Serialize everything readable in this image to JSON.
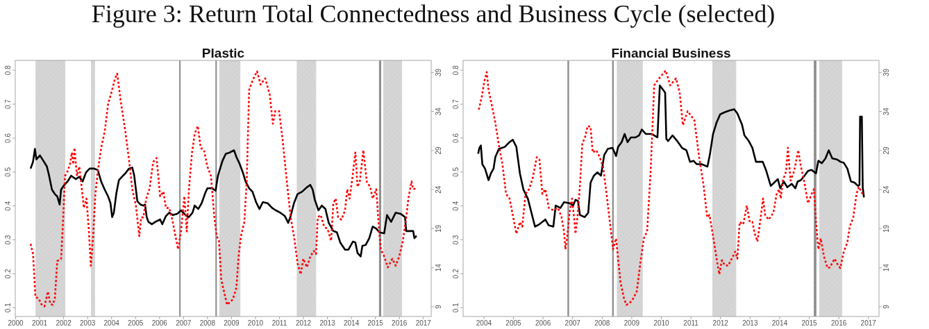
{
  "chart_data": [
    {
      "type": "line",
      "title": "Plastic",
      "annotations": [
        "Figure 3: Return Total Connectedness and Business Cycle (selected)"
      ],
      "xlim": [
        2000,
        2017.34
      ],
      "xticks": [
        2000,
        2001,
        2002,
        2003,
        2004,
        2005,
        2006,
        2007,
        2008,
        2009,
        2010,
        2011,
        2012,
        2013,
        2014,
        2015,
        2016,
        2017
      ],
      "ylim": [
        0.073,
        0.828
      ],
      "yticks": [
        0.1,
        0.2,
        0.3,
        0.4,
        0.5,
        0.6,
        0.7,
        0.8
      ],
      "y2lim": [
        7.7,
        40.5
      ],
      "y2ticks": [
        9,
        14,
        19,
        24,
        29,
        34,
        39
      ],
      "bands": [
        {
          "axis": "x",
          "from": 2000.86,
          "to": 2002.07,
          "color": "#d3d3d3"
        },
        {
          "axis": "x",
          "from": 2003.17,
          "to": 2003.31,
          "color": "#d3d3d3"
        },
        {
          "axis": "x",
          "from": 2006.85,
          "to": 2006.88,
          "color": "#8c8c8c"
        },
        {
          "axis": "x",
          "from": 2008.36,
          "to": 2008.39,
          "color": "#8c8c8c"
        },
        {
          "axis": "x",
          "from": 2008.52,
          "to": 2009.37,
          "color": "#d3d3d3"
        },
        {
          "axis": "x",
          "from": 2011.75,
          "to": 2012.53,
          "color": "#d3d3d3"
        },
        {
          "axis": "x",
          "from": 2015.18,
          "to": 2015.24,
          "color": "#8c8c8c"
        },
        {
          "axis": "x",
          "from": 2015.36,
          "to": 2016.11,
          "color": "#d3d3d3"
        }
      ],
      "series": [
        {
          "color": "#000000",
          "line_style": "solid",
          "x": [
            2000.64,
            2000.74,
            2000.82,
            2000.88,
            2001.03,
            2001.17,
            2001.32,
            2001.41,
            2001.53,
            2001.65,
            2001.75,
            2001.85,
            2001.91,
            2002.01,
            2002.18,
            2002.33,
            2002.52,
            2002.67,
            2002.81,
            2002.95,
            2003.1,
            2003.29,
            2003.44,
            2003.58,
            2003.73,
            2003.87,
            2003.97,
            2004.04,
            2004.11,
            2004.21,
            2004.32,
            2004.45,
            2004.59,
            2004.74,
            2004.88,
            2004.96,
            2005.03,
            2005.09,
            2005.22,
            2005.34,
            2005.41,
            2005.48,
            2005.55,
            2005.7,
            2005.84,
            2006.04,
            2006.13,
            2006.28,
            2006.42,
            2006.57,
            2006.76,
            2006.91,
            2007.1,
            2007.24,
            2007.39,
            2007.48,
            2007.63,
            2007.77,
            2007.92,
            2008.01,
            2008.2,
            2008.35,
            2008.45,
            2008.54,
            2008.64,
            2008.78,
            2008.93,
            2009.12,
            2009.22,
            2009.36,
            2009.5,
            2009.6,
            2009.75,
            2009.89,
            2010.04,
            2010.18,
            2010.32,
            2010.52,
            2010.71,
            2010.86,
            2011.05,
            2011.24,
            2011.38,
            2011.48,
            2011.62,
            2011.77,
            2011.96,
            2012.16,
            2012.3,
            2012.4,
            2012.49,
            2012.64,
            2012.78,
            2012.93,
            2013.07,
            2013.26,
            2013.41,
            2013.55,
            2013.75,
            2013.89,
            2014.08,
            2014.18,
            2014.27,
            2014.4,
            2014.47,
            2014.61,
            2014.76,
            2014.9,
            2015.05,
            2015.19,
            2015.38,
            2015.5,
            2015.67,
            2015.86,
            2016.06,
            2016.25,
            2016.3,
            2016.44,
            2016.59,
            2016.64,
            2016.73
          ],
          "values": [
            0.509,
            0.529,
            0.567,
            0.536,
            0.548,
            0.532,
            0.515,
            0.488,
            0.447,
            0.434,
            0.427,
            0.403,
            0.447,
            0.458,
            0.471,
            0.488,
            0.478,
            0.485,
            0.471,
            0.498,
            0.509,
            0.509,
            0.505,
            0.471,
            0.447,
            0.427,
            0.407,
            0.366,
            0.379,
            0.434,
            0.475,
            0.485,
            0.495,
            0.509,
            0.512,
            0.488,
            0.447,
            0.413,
            0.403,
            0.4,
            0.403,
            0.366,
            0.352,
            0.345,
            0.352,
            0.359,
            0.345,
            0.369,
            0.379,
            0.372,
            0.376,
            0.386,
            0.372,
            0.366,
            0.379,
            0.4,
            0.39,
            0.407,
            0.437,
            0.451,
            0.451,
            0.444,
            0.488,
            0.509,
            0.532,
            0.553,
            0.556,
            0.563,
            0.543,
            0.522,
            0.495,
            0.471,
            0.451,
            0.441,
            0.41,
            0.39,
            0.41,
            0.407,
            0.393,
            0.386,
            0.379,
            0.369,
            0.349,
            0.369,
            0.407,
            0.434,
            0.441,
            0.454,
            0.461,
            0.447,
            0.417,
            0.386,
            0.4,
            0.39,
            0.349,
            0.325,
            0.321,
            0.291,
            0.27,
            0.27,
            0.294,
            0.291,
            0.26,
            0.25,
            0.281,
            0.284,
            0.304,
            0.338,
            0.332,
            0.321,
            0.318,
            0.372,
            0.352,
            0.379,
            0.376,
            0.366,
            0.325,
            0.325,
            0.325,
            0.304,
            0.311
          ]
        },
        {
          "color": "#ff0000",
          "line_style": "dotted",
          "axis": "y2",
          "x": [
            2000.64,
            2000.74,
            2000.79,
            2000.84,
            2000.98,
            2001.08,
            2001.22,
            2001.36,
            2001.46,
            2001.56,
            2001.65,
            2001.75,
            2001.91,
            2001.99,
            2002.07,
            2002.18,
            2002.28,
            2002.36,
            2002.42,
            2002.47,
            2002.57,
            2002.67,
            2002.76,
            2002.86,
            2002.97,
            2003.07,
            2003.15,
            2003.24,
            2003.34,
            2003.44,
            2003.58,
            2003.73,
            2003.87,
            2004.01,
            2004.16,
            2004.25,
            2004.4,
            2004.59,
            2004.74,
            2004.88,
            2005.03,
            2005.17,
            2005.25,
            2005.34,
            2005.46,
            2005.6,
            2005.75,
            2005.89,
            2006.04,
            2006.18,
            2006.28,
            2006.42,
            2006.57,
            2006.66,
            2006.79,
            2006.91,
            2007.05,
            2007.15,
            2007.24,
            2007.37,
            2007.48,
            2007.61,
            2007.73,
            2007.87,
            2008.01,
            2008.16,
            2008.3,
            2008.4,
            2008.49,
            2008.59,
            2008.83,
            2009.07,
            2009.22,
            2009.31,
            2009.41,
            2009.55,
            2009.65,
            2009.75,
            2009.89,
            2010.08,
            2010.23,
            2010.42,
            2010.61,
            2010.74,
            2010.84,
            2011.0,
            2011.14,
            2011.34,
            2011.48,
            2011.62,
            2011.77,
            2011.9,
            2012.01,
            2012.16,
            2012.3,
            2012.45,
            2012.54,
            2012.61,
            2012.73,
            2012.88,
            2013.02,
            2013.17,
            2013.26,
            2013.36,
            2013.46,
            2013.6,
            2013.75,
            2013.84,
            2013.94,
            2014.04,
            2014.18,
            2014.27,
            2014.37,
            2014.51,
            2014.66,
            2014.8,
            2014.9,
            2015.05,
            2015.17,
            2015.24,
            2015.38,
            2015.53,
            2015.72,
            2015.86,
            2016.01,
            2016.16,
            2016.3,
            2016.39,
            2016.52,
            2016.59,
            2016.71
          ],
          "values": [
            17.0,
            15.7,
            13.0,
            10.2,
            10.0,
            9.3,
            9.0,
            10.9,
            9.3,
            9.2,
            10.0,
            14.8,
            15.1,
            19.8,
            25.7,
            26.3,
            27.2,
            28.7,
            27.2,
            29.3,
            25.7,
            26.9,
            24.5,
            21.6,
            22.8,
            18.6,
            14.2,
            17.7,
            23.4,
            26.3,
            29.3,
            31.4,
            34.9,
            36.4,
            38.2,
            38.8,
            35.2,
            31.4,
            27.8,
            24.0,
            21.9,
            18.0,
            20.4,
            20.4,
            22.8,
            24.1,
            27.5,
            28.0,
            23.1,
            23.7,
            21.6,
            21.6,
            19.8,
            18.3,
            16.3,
            18.6,
            23.1,
            18.6,
            24.0,
            28.7,
            31.1,
            32.1,
            29.3,
            29.0,
            26.9,
            25.7,
            20.4,
            18.0,
            17.4,
            12.4,
            9.2,
            9.9,
            11.4,
            15.4,
            18.0,
            19.8,
            25.1,
            36.7,
            37.9,
            39.1,
            37.4,
            38.2,
            36.1,
            32.4,
            34.0,
            34.0,
            30.5,
            24.5,
            20.4,
            18.0,
            14.5,
            13.1,
            15.1,
            14.0,
            15.4,
            16.1,
            15.7,
            20.4,
            20.7,
            19.2,
            18.9,
            17.4,
            22.2,
            22.8,
            20.4,
            20.1,
            21.3,
            24.0,
            22.8,
            25.1,
            28.7,
            24.3,
            25.1,
            29.0,
            24.9,
            24.3,
            22.8,
            24.0,
            18.6,
            16.3,
            15.4,
            14.0,
            15.1,
            14.2,
            15.4,
            17.4,
            20.4,
            22.8,
            25.0,
            24.0,
            24.1
          ]
        }
      ]
    },
    {
      "type": "line",
      "title": "Financial Business",
      "xlim": [
        2003.31,
        2017.37
      ],
      "xticks": [
        2004,
        2005,
        2006,
        2007,
        2008,
        2009,
        2010,
        2011,
        2012,
        2013,
        2014,
        2015,
        2016,
        2017
      ],
      "ylim": [
        0.073,
        0.828
      ],
      "yticks": [
        0.1,
        0.2,
        0.3,
        0.4,
        0.5,
        0.6,
        0.7,
        0.8
      ],
      "y2lim": [
        7.7,
        40.5
      ],
      "y2ticks": [
        9,
        14,
        19,
        24,
        29,
        34,
        39
      ],
      "bands": [
        {
          "axis": "x",
          "from": 2006.85,
          "to": 2006.88,
          "color": "#8c8c8c"
        },
        {
          "axis": "x",
          "from": 2008.36,
          "to": 2008.39,
          "color": "#8c8c8c"
        },
        {
          "axis": "x",
          "from": 2008.52,
          "to": 2009.37,
          "color": "#d3d3d3"
        },
        {
          "axis": "x",
          "from": 2011.75,
          "to": 2012.53,
          "color": "#d3d3d3"
        },
        {
          "axis": "x",
          "from": 2015.18,
          "to": 2015.24,
          "color": "#8c8c8c"
        },
        {
          "axis": "x",
          "from": 2015.36,
          "to": 2016.11,
          "color": "#d3d3d3"
        }
      ],
      "series": [
        {
          "color": "#000000",
          "line_style": "solid",
          "x": [
            2003.82,
            2003.86,
            2003.91,
            2003.96,
            2004.05,
            2004.17,
            2004.25,
            2004.34,
            2004.4,
            2004.52,
            2004.72,
            2004.88,
            2004.99,
            2005.11,
            2005.23,
            2005.35,
            2005.5,
            2005.62,
            2005.74,
            2005.89,
            2006.09,
            2006.2,
            2006.36,
            2006.44,
            2006.6,
            2006.72,
            2006.91,
            2007.03,
            2007.11,
            2007.19,
            2007.26,
            2007.42,
            2007.54,
            2007.62,
            2007.73,
            2007.85,
            2007.97,
            2008.08,
            2008.2,
            2008.36,
            2008.48,
            2008.55,
            2008.67,
            2008.77,
            2008.87,
            2008.98,
            2009.14,
            2009.26,
            2009.35,
            2009.49,
            2009.69,
            2009.88,
            2009.96,
            2010.08,
            2010.14,
            2010.18,
            2010.24,
            2010.39,
            2010.55,
            2010.71,
            2010.86,
            2010.98,
            2011.1,
            2011.21,
            2011.37,
            2011.57,
            2011.65,
            2011.76,
            2011.88,
            2012.0,
            2012.15,
            2012.31,
            2012.47,
            2012.58,
            2012.74,
            2012.82,
            2012.97,
            2013.09,
            2013.21,
            2013.32,
            2013.44,
            2013.56,
            2013.71,
            2013.83,
            2013.95,
            2014.03,
            2014.15,
            2014.27,
            2014.42,
            2014.54,
            2014.62,
            2014.73,
            2014.85,
            2014.97,
            2015.09,
            2015.24,
            2015.32,
            2015.44,
            2015.56,
            2015.67,
            2015.79,
            2015.95,
            2016.07,
            2016.18,
            2016.3,
            2016.42,
            2016.54,
            2016.66,
            2016.71,
            2016.73,
            2016.79,
            2016.82,
            2016.86
          ],
          "values": [
            0.553,
            0.57,
            0.577,
            0.522,
            0.509,
            0.475,
            0.495,
            0.509,
            0.543,
            0.567,
            0.573,
            0.587,
            0.594,
            0.573,
            0.495,
            0.447,
            0.42,
            0.379,
            0.338,
            0.345,
            0.359,
            0.342,
            0.338,
            0.4,
            0.393,
            0.41,
            0.407,
            0.4,
            0.417,
            0.414,
            0.372,
            0.366,
            0.379,
            0.468,
            0.488,
            0.498,
            0.488,
            0.549,
            0.567,
            0.57,
            0.546,
            0.573,
            0.587,
            0.611,
            0.587,
            0.601,
            0.601,
            0.607,
            0.624,
            0.611,
            0.611,
            0.601,
            0.754,
            0.74,
            0.733,
            0.597,
            0.59,
            0.607,
            0.59,
            0.57,
            0.563,
            0.529,
            0.532,
            0.522,
            0.522,
            0.515,
            0.549,
            0.611,
            0.645,
            0.669,
            0.675,
            0.68,
            0.684,
            0.672,
            0.638,
            0.607,
            0.59,
            0.57,
            0.529,
            0.529,
            0.529,
            0.502,
            0.458,
            0.468,
            0.478,
            0.451,
            0.471,
            0.454,
            0.464,
            0.451,
            0.471,
            0.475,
            0.488,
            0.502,
            0.505,
            0.495,
            0.532,
            0.525,
            0.539,
            0.563,
            0.539,
            0.536,
            0.529,
            0.526,
            0.509,
            0.471,
            0.468,
            0.458,
            0.461,
            0.662,
            0.662,
            0.454,
            0.424
          ]
        },
        {
          "color": "#ff0000",
          "line_style": "dotted",
          "axis": "y2",
          "x": [
            2003.84,
            2003.94,
            2004.03,
            2004.11,
            2004.17,
            2004.29,
            2004.4,
            2004.52,
            2004.64,
            2004.76,
            2004.88,
            2004.99,
            2005.11,
            2005.23,
            2005.31,
            2005.42,
            2005.54,
            2005.66,
            2005.8,
            2005.89,
            2005.99,
            2006.09,
            2006.21,
            2006.36,
            2006.52,
            2006.64,
            2006.72,
            2006.77,
            2006.83,
            2006.91,
            2006.99,
            2007.07,
            2007.11,
            2007.19,
            2007.26,
            2007.34,
            2007.42,
            2007.52,
            2007.62,
            2007.69,
            2007.81,
            2007.93,
            2008.04,
            2008.16,
            2008.28,
            2008.38,
            2008.48,
            2008.55,
            2008.63,
            2008.75,
            2008.83,
            2008.94,
            2009.06,
            2009.18,
            2009.3,
            2009.42,
            2009.53,
            2009.65,
            2009.77,
            2009.88,
            2010.0,
            2010.16,
            2010.31,
            2010.51,
            2010.63,
            2010.74,
            2010.9,
            2011.13,
            2011.29,
            2011.44,
            2011.56,
            2011.64,
            2011.76,
            2011.88,
            2011.97,
            2012.06,
            2012.15,
            2012.27,
            2012.43,
            2012.51,
            2012.58,
            2012.66,
            2012.78,
            2012.9,
            2013.0,
            2013.09,
            2013.17,
            2013.26,
            2013.37,
            2013.45,
            2013.52,
            2013.64,
            2013.8,
            2013.91,
            2013.99,
            2014.05,
            2014.12,
            2014.23,
            2014.29,
            2014.38,
            2014.5,
            2014.64,
            2014.73,
            2014.85,
            2014.97,
            2015.09,
            2015.17,
            2015.24,
            2015.32,
            2015.4,
            2015.51,
            2015.63,
            2015.71,
            2015.87,
            2015.98,
            2016.06,
            2016.18,
            2016.3,
            2016.38,
            2016.5,
            2016.61,
            2016.69,
            2016.81
          ],
          "values": [
            34.2,
            35.8,
            37.9,
            39.0,
            36.7,
            34.6,
            32.5,
            29.6,
            27.2,
            23.4,
            22.8,
            20.7,
            18.3,
            19.8,
            19.2,
            23.4,
            24.0,
            25.4,
            28.1,
            27.8,
            23.4,
            24.0,
            21.6,
            21.3,
            21.6,
            20.4,
            18.6,
            16.3,
            18.0,
            21.0,
            22.8,
            20.1,
            18.3,
            21.0,
            24.5,
            29.9,
            30.5,
            32.1,
            32.0,
            28.7,
            29.0,
            28.1,
            26.9,
            23.4,
            19.5,
            16.3,
            17.7,
            15.1,
            12.1,
            10.0,
            9.2,
            9.4,
            10.0,
            10.9,
            14.5,
            17.7,
            18.6,
            26.3,
            37.3,
            37.9,
            38.5,
            39.2,
            37.3,
            38.2,
            36.4,
            32.2,
            34.0,
            32.8,
            28.1,
            24.5,
            20.4,
            20.7,
            18.0,
            15.1,
            13.1,
            14.9,
            14.3,
            14.2,
            15.4,
            16.0,
            15.1,
            19.8,
            19.5,
            21.9,
            19.8,
            19.8,
            18.3,
            17.3,
            20.4,
            22.8,
            20.7,
            20.1,
            21.0,
            23.4,
            24.0,
            22.8,
            25.1,
            26.3,
            29.3,
            25.1,
            26.3,
            29.0,
            26.9,
            24.8,
            22.2,
            23.4,
            24.0,
            19.8,
            16.3,
            17.7,
            15.4,
            13.9,
            14.0,
            15.1,
            14.3,
            13.9,
            16.0,
            17.2,
            19.2,
            20.4,
            23.4,
            24.3,
            23.4
          ]
        }
      ]
    }
  ]
}
